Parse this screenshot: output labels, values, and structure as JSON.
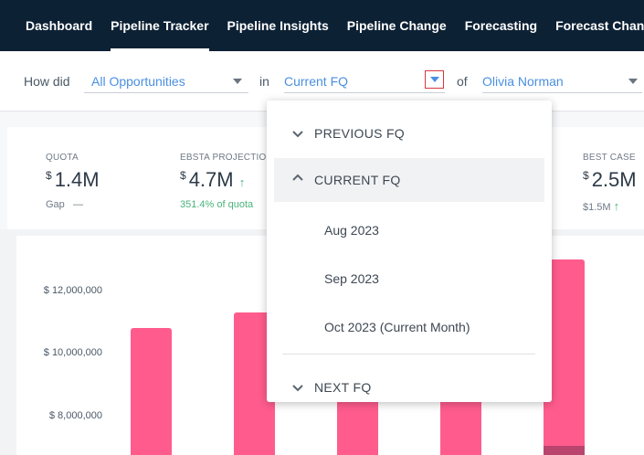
{
  "nav": {
    "items": [
      {
        "label": "Dashboard",
        "active": false
      },
      {
        "label": "Pipeline Tracker",
        "active": true
      },
      {
        "label": "Pipeline Insights",
        "active": false
      },
      {
        "label": "Pipeline Change",
        "active": false
      },
      {
        "label": "Forecasting",
        "active": false
      },
      {
        "label": "Forecast Change",
        "active": false
      }
    ]
  },
  "filters": {
    "prefix": "How did",
    "opportunity_select": "All Opportunities",
    "in_text": "in",
    "period_select": "Current FQ",
    "of_text": "of",
    "owner_select": "Olivia Norman"
  },
  "kpis": {
    "quota": {
      "label": "QUOTA",
      "currency": "$",
      "value": "1.4M",
      "sub_label": "Gap",
      "sub_value": "—"
    },
    "projection": {
      "label": "EBSTA PROJECTION",
      "currency": "$",
      "value": "4.7M",
      "sub_text": "351.4% of quota"
    },
    "best_case": {
      "label": "BEST CASE",
      "currency": "$",
      "value": "2.5M",
      "sub_text": "$1.5M"
    }
  },
  "chart_data": {
    "type": "bar",
    "yticks": [
      "$ 12,000,000",
      "$ 10,000,000",
      "$ 8,000,000"
    ],
    "ylim": [
      7000000,
      13000000
    ],
    "bars": [
      10800000,
      11300000,
      10800000,
      10800000,
      13000000
    ],
    "top_segment_last": 300000
  },
  "dropdown": {
    "previous": "PREVIOUS FQ",
    "current": "CURRENT FQ",
    "months": [
      "Aug 2023",
      "Sep 2023",
      "Oct 2023 (Current Month)"
    ],
    "next": "NEXT FQ"
  },
  "colors": {
    "nav_bg": "#0d2135",
    "accent": "#4a8fe0",
    "bar": "#ff5c8d",
    "positive": "#49b37c"
  }
}
